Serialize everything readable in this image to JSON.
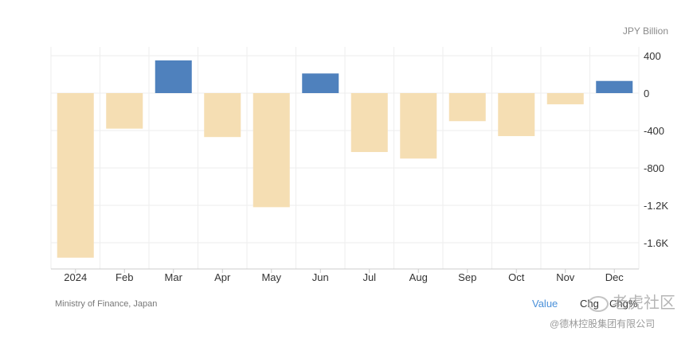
{
  "unit_label": "JPY Billion",
  "source": "Ministry of Finance, Japan",
  "tabs": [
    {
      "label": "Value",
      "active": true
    },
    {
      "label": "Chg",
      "active": false
    },
    {
      "label": "Chg%",
      "active": false
    }
  ],
  "watermark": "老虎社区",
  "company": "@德林控股集团有限公司",
  "colors": {
    "positive": "#4f81bd",
    "negative": "#f5deb3",
    "grid": "#eeeeee",
    "active_tab": "#4a90d9"
  },
  "chart_data": {
    "type": "bar",
    "categories": [
      "2024",
      "Feb",
      "Mar",
      "Apr",
      "May",
      "Jun",
      "Jul",
      "Aug",
      "Sep",
      "Oct",
      "Nov",
      "Dec"
    ],
    "values": [
      -1760,
      -380,
      350,
      -470,
      -1220,
      210,
      -630,
      -700,
      -300,
      -460,
      -120,
      130
    ],
    "ylim": [
      -1900,
      450
    ],
    "yticks": [
      400,
      0,
      -400,
      -800,
      -1200,
      -1600
    ],
    "ytick_labels": [
      "400",
      "0",
      "-400",
      "-800",
      "-1.2K",
      "-1.6K"
    ],
    "grid": true,
    "axis_position": "right",
    "title": "",
    "xlabel": "",
    "ylabel": ""
  }
}
